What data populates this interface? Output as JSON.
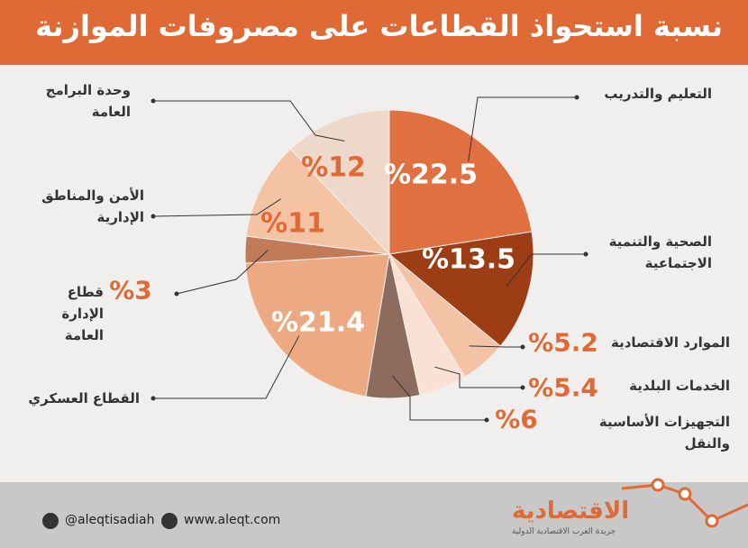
{
  "chart_data": {
    "type": "pie",
    "title": "نسبة استحواذ القطاعات على مصروفات الموازنة",
    "categories": [
      "التعليم والتدريب",
      "الصحية والتنمية الاجتماعية",
      "الموارد الاقتصادية",
      "الخدمات البلدية",
      "التجهيزات الأساسية والنقل",
      "القطاع العسكري",
      "قطاع الإدارة العامة",
      "الأمن والمناطق الإدارية",
      "وحدة البرامج العامة"
    ],
    "values": [
      22.5,
      13.5,
      5.2,
      5.4,
      6,
      21.4,
      3,
      11,
      12
    ],
    "value_labels": [
      "%22.5",
      "%13.5",
      "%5.2",
      "%5.4",
      "%6",
      "%21.4",
      "%3",
      "%11",
      "%12"
    ],
    "colors": [
      "#e07040",
      "#9c3d16",
      "#f4c3a6",
      "#f9e1d3",
      "#8d6b5d",
      "#edaa82",
      "#c27b58",
      "#f3c3a3",
      "#eed8ca"
    ]
  },
  "footer": {
    "twitter": "@aleqtisadiah",
    "website": "www.aleqt.com",
    "logo": "الاقتصادية",
    "tagline": "جريدة العرب الاقتصادية الدولية"
  }
}
